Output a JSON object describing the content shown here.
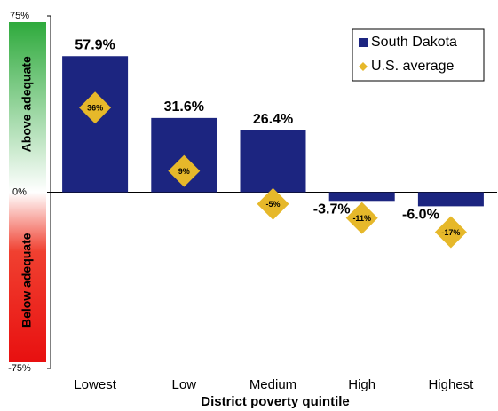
{
  "chart_data": {
    "type": "bar",
    "x_label": "District poverty quintile",
    "above_label": "Above adequate",
    "below_label": "Below adequate",
    "categories": [
      "Lowest",
      "Low",
      "Medium",
      "High",
      "Highest"
    ],
    "series": [
      {
        "name": "South Dakota",
        "color": "#1c2580",
        "kind": "bar",
        "values": [
          57.9,
          31.6,
          26.4,
          -3.7,
          -6.0
        ],
        "value_labels": [
          "57.9%",
          "31.6%",
          "26.4%",
          "-3.7%",
          "-6.0%"
        ]
      },
      {
        "name": "U.S. average",
        "color": "#e6b82a",
        "kind": "diamond",
        "values": [
          36,
          9,
          -5,
          -11,
          -17
        ],
        "value_labels": [
          "36%",
          "9%",
          "-5%",
          "-11%",
          "-17%"
        ]
      }
    ],
    "ylim": [
      -75,
      75
    ],
    "yticks": [
      {
        "value": -75,
        "label": "-75%"
      },
      {
        "value": 0,
        "label": "0%"
      },
      {
        "value": 75,
        "label": "75%"
      }
    ],
    "legend": "upper right"
  }
}
